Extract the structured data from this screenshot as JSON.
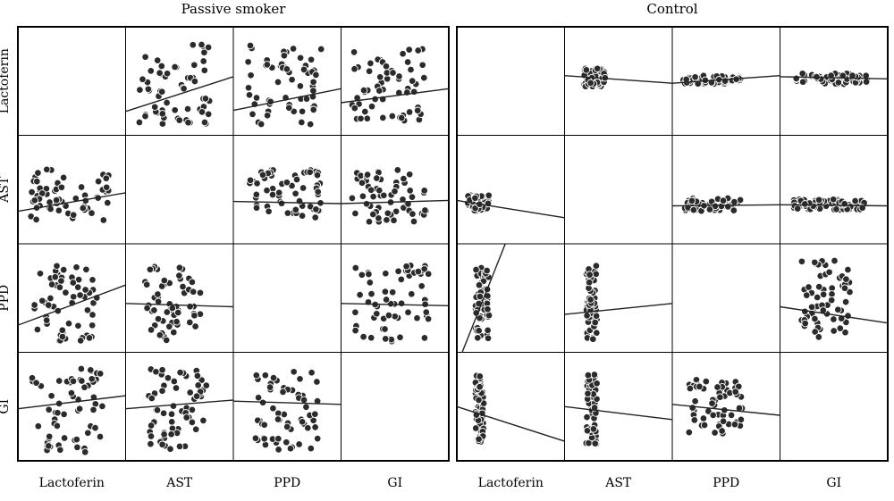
{
  "chart_data": {
    "type": "scatter",
    "groups": [
      {
        "title": "Passive smoker",
        "variables": [
          "Lactoferin",
          "AST",
          "PPD",
          "GI"
        ],
        "cells": [
          {
            "row": 0,
            "col": 1,
            "scatter_x": [
              0.12,
              0.78
            ],
            "scatter_y": [
              0.08,
              0.85
            ],
            "fit_line": [
              [
                0,
                0.22
              ],
              [
                1,
                0.54
              ]
            ]
          },
          {
            "row": 0,
            "col": 2,
            "scatter_x": [
              0.12,
              0.82
            ],
            "scatter_y": [
              0.1,
              0.85
            ],
            "fit_line": [
              [
                0,
                0.23
              ],
              [
                1,
                0.43
              ]
            ]
          },
          {
            "row": 0,
            "col": 3,
            "scatter_x": [
              0.1,
              0.8
            ],
            "scatter_y": [
              0.12,
              0.8
            ],
            "fit_line": [
              [
                0,
                0.3
              ],
              [
                1,
                0.43
              ]
            ]
          },
          {
            "row": 1,
            "col": 0,
            "scatter_x": [
              0.12,
              0.85
            ],
            "scatter_y": [
              0.2,
              0.7
            ],
            "fit_line": [
              [
                0,
                0.3
              ],
              [
                1,
                0.47
              ]
            ]
          },
          {
            "row": 1,
            "col": 2,
            "scatter_x": [
              0.15,
              0.82
            ],
            "scatter_y": [
              0.2,
              0.7
            ],
            "fit_line": [
              [
                0,
                0.39
              ],
              [
                1,
                0.37
              ]
            ]
          },
          {
            "row": 1,
            "col": 3,
            "scatter_x": [
              0.1,
              0.8
            ],
            "scatter_y": [
              0.2,
              0.7
            ],
            "fit_line": [
              [
                0,
                0.37
              ],
              [
                1,
                0.4
              ]
            ]
          },
          {
            "row": 2,
            "col": 0,
            "scatter_x": [
              0.15,
              0.75
            ],
            "scatter_y": [
              0.1,
              0.8
            ],
            "fit_line": [
              [
                0,
                0.25
              ],
              [
                1,
                0.62
              ]
            ]
          },
          {
            "row": 2,
            "col": 1,
            "scatter_x": [
              0.18,
              0.7
            ],
            "scatter_y": [
              0.1,
              0.8
            ],
            "fit_line": [
              [
                0,
                0.45
              ],
              [
                1,
                0.42
              ]
            ]
          },
          {
            "row": 2,
            "col": 3,
            "scatter_x": [
              0.12,
              0.82
            ],
            "scatter_y": [
              0.1,
              0.8
            ],
            "fit_line": [
              [
                0,
                0.45
              ],
              [
                1,
                0.43
              ]
            ]
          },
          {
            "row": 3,
            "col": 0,
            "scatter_x": [
              0.12,
              0.8
            ],
            "scatter_y": [
              0.08,
              0.85
            ],
            "fit_line": [
              [
                0,
                0.48
              ],
              [
                1,
                0.6
              ]
            ]
          },
          {
            "row": 3,
            "col": 1,
            "scatter_x": [
              0.2,
              0.75
            ],
            "scatter_y": [
              0.1,
              0.85
            ],
            "fit_line": [
              [
                0,
                0.48
              ],
              [
                1,
                0.56
              ]
            ]
          },
          {
            "row": 3,
            "col": 2,
            "scatter_x": [
              0.2,
              0.8
            ],
            "scatter_y": [
              0.1,
              0.85
            ],
            "fit_line": [
              [
                0,
                0.55
              ],
              [
                1,
                0.52
              ]
            ]
          }
        ]
      },
      {
        "title": "Control",
        "variables": [
          "Lactoferin",
          "AST",
          "PPD",
          "GI"
        ],
        "cells": [
          {
            "row": 0,
            "col": 1,
            "scatter_x": [
              0.18,
              0.38
            ],
            "scatter_y": [
              0.45,
              0.62
            ],
            "fit_line": [
              [
                0,
                0.55
              ],
              [
                1,
                0.48
              ]
            ]
          },
          {
            "row": 0,
            "col": 2,
            "scatter_x": [
              0.1,
              0.65
            ],
            "scatter_y": [
              0.47,
              0.55
            ],
            "fit_line": [
              [
                0,
                0.48
              ],
              [
                1,
                0.55
              ]
            ]
          },
          {
            "row": 0,
            "col": 3,
            "scatter_x": [
              0.15,
              0.82
            ],
            "scatter_y": [
              0.47,
              0.57
            ],
            "fit_line": [
              [
                0,
                0.54
              ],
              [
                1,
                0.52
              ]
            ]
          },
          {
            "row": 1,
            "col": 0,
            "scatter_x": [
              0.1,
              0.3
            ],
            "scatter_y": [
              0.3,
              0.45
            ],
            "fit_line": [
              [
                0,
                0.4
              ],
              [
                1,
                0.24
              ]
            ]
          },
          {
            "row": 1,
            "col": 2,
            "scatter_x": [
              0.1,
              0.65
            ],
            "scatter_y": [
              0.3,
              0.42
            ],
            "fit_line": [
              [
                0,
                0.35
              ],
              [
                1,
                0.36
              ]
            ]
          },
          {
            "row": 1,
            "col": 3,
            "scatter_x": [
              0.12,
              0.8
            ],
            "scatter_y": [
              0.31,
              0.41
            ],
            "fit_line": [
              [
                0,
                0.36
              ],
              [
                1,
                0.35
              ]
            ]
          },
          {
            "row": 2,
            "col": 0,
            "scatter_x": [
              0.17,
              0.3
            ],
            "scatter_y": [
              0.12,
              0.8
            ],
            "fit_line": [
              [
                0.05,
                0
              ],
              [
                0.45,
                1
              ]
            ]
          },
          {
            "row": 2,
            "col": 1,
            "scatter_x": [
              0.2,
              0.3
            ],
            "scatter_y": [
              0.12,
              0.8
            ],
            "fit_line": [
              [
                0,
                0.35
              ],
              [
                1,
                0.45
              ]
            ]
          },
          {
            "row": 2,
            "col": 3,
            "scatter_x": [
              0.2,
              0.65
            ],
            "scatter_y": [
              0.12,
              0.85
            ],
            "fit_line": [
              [
                0,
                0.42
              ],
              [
                1,
                0.27
              ]
            ]
          },
          {
            "row": 3,
            "col": 0,
            "scatter_x": [
              0.17,
              0.25
            ],
            "scatter_y": [
              0.15,
              0.8
            ],
            "fit_line": [
              [
                0,
                0.5
              ],
              [
                1,
                0.18
              ]
            ]
          },
          {
            "row": 3,
            "col": 1,
            "scatter_x": [
              0.2,
              0.3
            ],
            "scatter_y": [
              0.15,
              0.8
            ],
            "fit_line": [
              [
                0,
                0.5
              ],
              [
                1,
                0.38
              ]
            ]
          },
          {
            "row": 3,
            "col": 2,
            "scatter_x": [
              0.15,
              0.65
            ],
            "scatter_y": [
              0.25,
              0.75
            ],
            "fit_line": [
              [
                0,
                0.52
              ],
              [
                1,
                0.42
              ]
            ]
          }
        ]
      }
    ],
    "grid": false,
    "legend": "none"
  }
}
